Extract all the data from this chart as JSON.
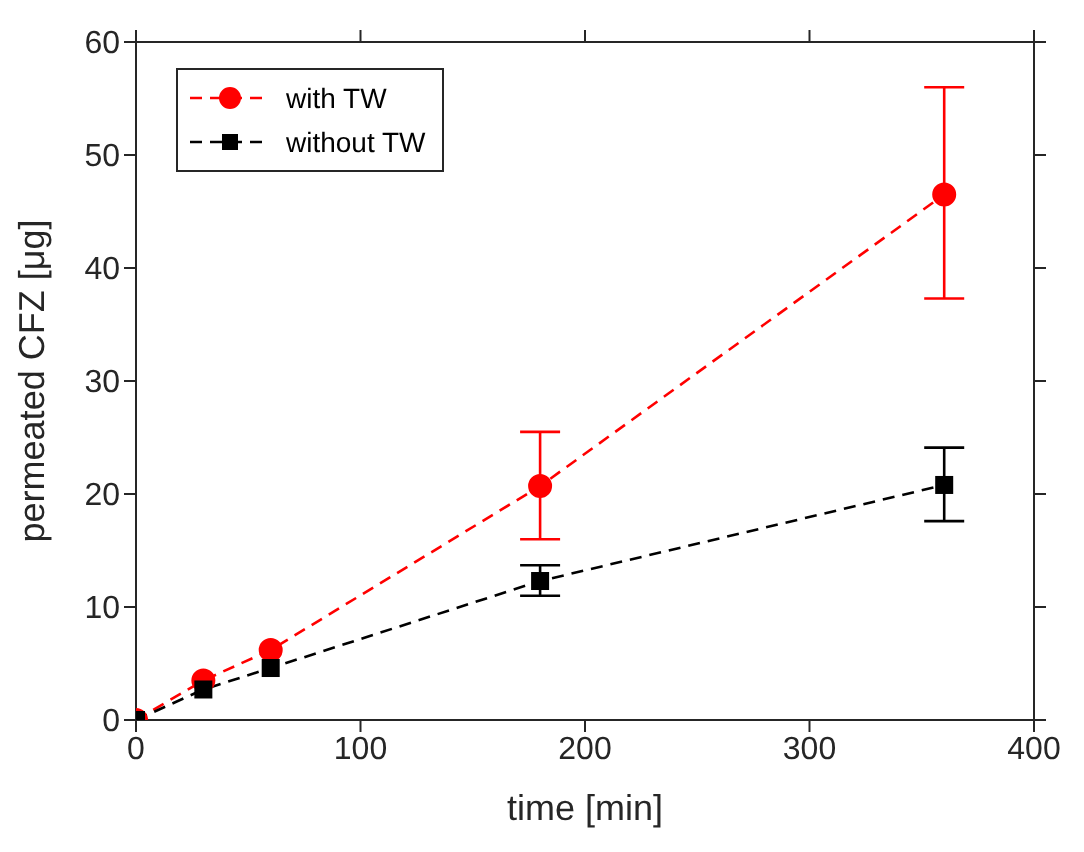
{
  "chart_data": {
    "type": "line",
    "xlabel": "time [min]",
    "ylabel": "permeated CFZ [μg]",
    "x": [
      0,
      30,
      60,
      180,
      360
    ],
    "series": [
      {
        "name": "with TW",
        "color": "#ff0000",
        "marker": "circle",
        "values": [
          0,
          3.5,
          6.2,
          20.7,
          46.5
        ],
        "errors": [
          null,
          null,
          null,
          [
            16,
            25.5
          ],
          [
            37.3,
            56
          ]
        ]
      },
      {
        "name": "without TW",
        "color": "#000000",
        "marker": "square",
        "values": [
          0,
          2.7,
          4.6,
          12.3,
          20.8
        ],
        "errors": [
          null,
          null,
          null,
          [
            11,
            13.7
          ],
          [
            17.6,
            24.1
          ]
        ]
      }
    ],
    "xlim": [
      0,
      400
    ],
    "xticks": [
      0,
      100,
      200,
      300,
      400
    ],
    "ylim": [
      0,
      60
    ],
    "yticks": [
      0,
      10,
      20,
      30,
      40,
      50,
      60
    ],
    "grid": false,
    "legend": "top left",
    "line_style": "dashed"
  }
}
